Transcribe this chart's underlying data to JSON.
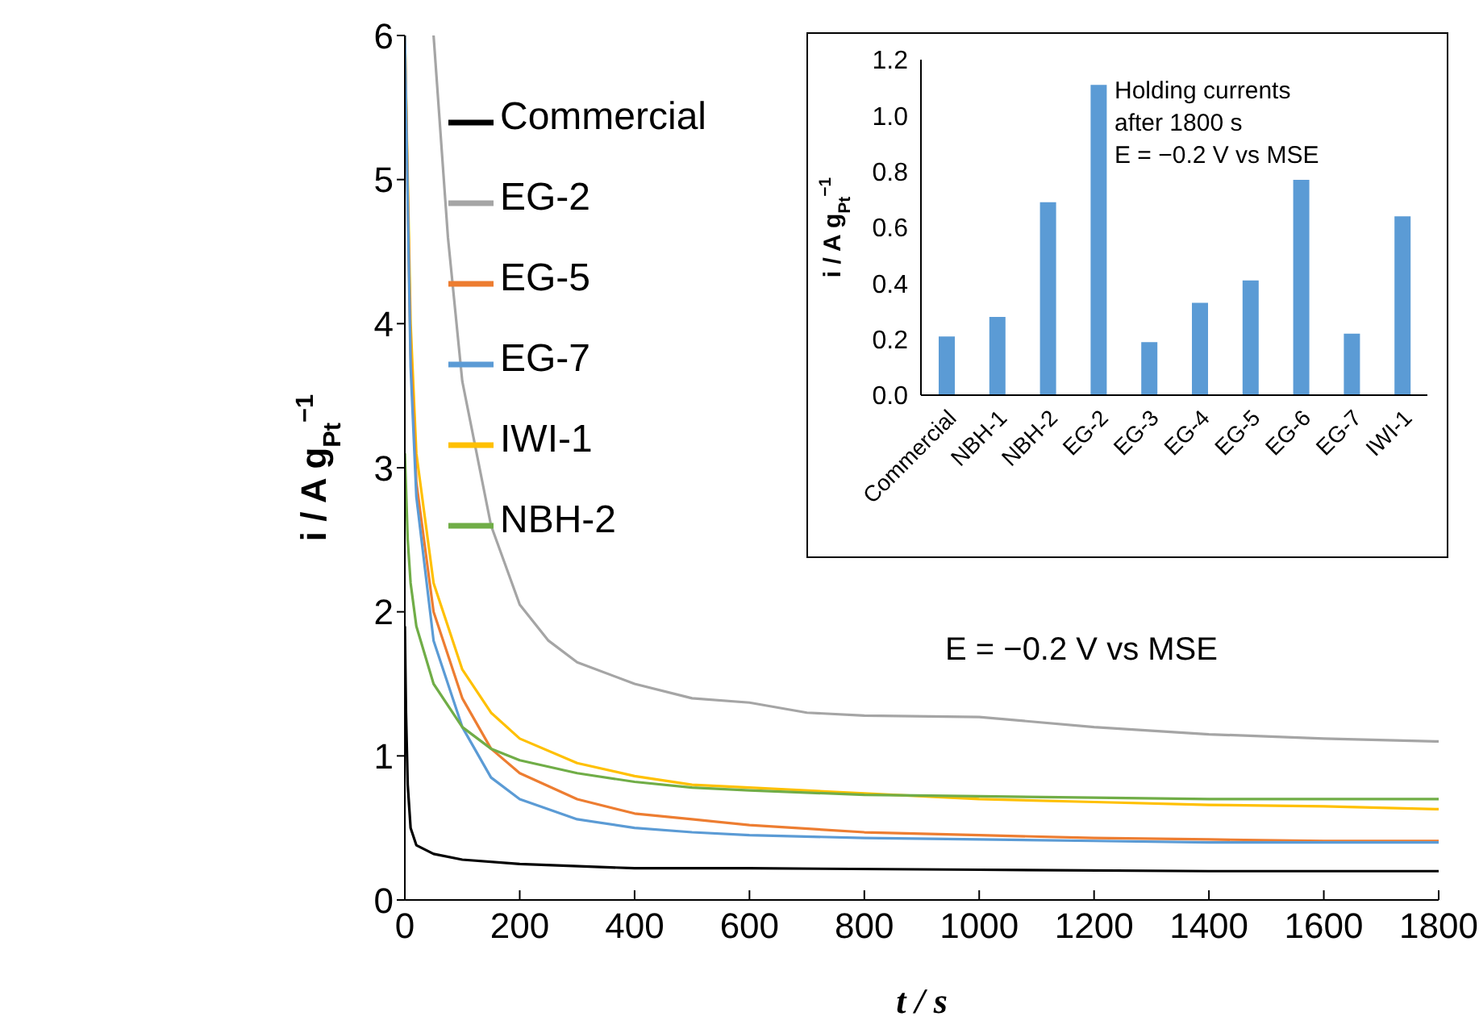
{
  "chart_data": [
    {
      "type": "line",
      "xlabel": "t / s",
      "ylabel": "i / A g$_{Pt}$$^{−1}$",
      "xlim": [
        0,
        1800
      ],
      "xticks": [
        0,
        200,
        400,
        600,
        800,
        1000,
        1200,
        1400,
        1600,
        1800
      ],
      "ylim": [
        0,
        6
      ],
      "yticks": [
        0,
        1,
        2,
        3,
        4,
        5,
        6
      ],
      "legend": "top left",
      "grid": false,
      "marker": "none",
      "line_style": "solid",
      "annotations": [
        "E = −0.2 V vs MSE"
      ],
      "series": [
        {
          "name": "EG-2",
          "color": "#a5a5a5",
          "x": [
            50,
            75,
            100,
            150,
            200,
            250,
            300,
            400,
            500,
            600,
            700,
            800,
            1000,
            1200,
            1400,
            1600,
            1800
          ],
          "values": [
            6.0,
            4.6,
            3.6,
            2.6,
            2.05,
            1.8,
            1.65,
            1.5,
            1.4,
            1.37,
            1.3,
            1.28,
            1.27,
            1.2,
            1.15,
            1.12,
            1.1
          ]
        },
        {
          "name": "IWI-1",
          "color": "#ffc000",
          "x": [
            0,
            10,
            20,
            50,
            100,
            150,
            200,
            300,
            400,
            500,
            600,
            800,
            1000,
            1200,
            1400,
            1600,
            1800
          ],
          "values": [
            6.0,
            4.0,
            3.1,
            2.2,
            1.6,
            1.3,
            1.12,
            0.95,
            0.86,
            0.8,
            0.78,
            0.74,
            0.7,
            0.68,
            0.66,
            0.65,
            0.63
          ]
        },
        {
          "name": "EG-5",
          "color": "#ed7d31",
          "x": [
            0,
            10,
            20,
            50,
            100,
            150,
            200,
            300,
            400,
            500,
            600,
            800,
            1000,
            1200,
            1400,
            1600,
            1800
          ],
          "values": [
            6.0,
            3.8,
            2.9,
            2.0,
            1.4,
            1.05,
            0.88,
            0.7,
            0.6,
            0.56,
            0.52,
            0.47,
            0.45,
            0.43,
            0.42,
            0.41,
            0.41
          ]
        },
        {
          "name": "EG-7",
          "color": "#5b9bd5",
          "x": [
            0,
            10,
            20,
            50,
            100,
            150,
            200,
            300,
            400,
            500,
            600,
            800,
            1000,
            1200,
            1400,
            1600,
            1800
          ],
          "values": [
            6.0,
            3.7,
            2.8,
            1.8,
            1.2,
            0.85,
            0.7,
            0.56,
            0.5,
            0.47,
            0.45,
            0.43,
            0.42,
            0.41,
            0.4,
            0.4,
            0.4
          ]
        },
        {
          "name": "NBH-2",
          "color": "#70ad47",
          "x": [
            0,
            5,
            10,
            20,
            50,
            100,
            150,
            200,
            300,
            400,
            500,
            600,
            800,
            1000,
            1200,
            1400,
            1600,
            1800
          ],
          "values": [
            3.1,
            2.5,
            2.2,
            1.9,
            1.5,
            1.2,
            1.05,
            0.97,
            0.88,
            0.82,
            0.78,
            0.76,
            0.73,
            0.72,
            0.71,
            0.7,
            0.7,
            0.7
          ]
        },
        {
          "name": "Commercial",
          "color": "#000000",
          "x": [
            0,
            2,
            5,
            10,
            20,
            50,
            100,
            200,
            400,
            600,
            1000,
            1400,
            1800
          ],
          "values": [
            1.9,
            1.3,
            0.8,
            0.5,
            0.38,
            0.32,
            0.28,
            0.25,
            0.22,
            0.22,
            0.21,
            0.2,
            0.2
          ]
        }
      ]
    },
    {
      "type": "bar",
      "ylabel": "i / A g$_{Pt}$$^{−1}$",
      "categories": [
        "Commercial",
        "NBH-1",
        "NBH-2",
        "EG-2",
        "EG-3",
        "EG-4",
        "EG-5",
        "EG-6",
        "EG-7",
        "IWI-1"
      ],
      "values": [
        0.21,
        0.28,
        0.69,
        1.11,
        0.19,
        0.33,
        0.41,
        0.77,
        0.22,
        0.64
      ],
      "color": "#5b9bd5",
      "ylim": [
        0,
        1.2
      ],
      "yticks": [
        {
          "value": 0,
          "label": "0.0"
        },
        {
          "value": 0.2,
          "label": "0.2"
        },
        {
          "value": 0.4,
          "label": "0.4"
        },
        {
          "value": 0.6,
          "label": "0.6"
        },
        {
          "value": 0.8,
          "label": "0.8"
        },
        {
          "value": 1,
          "label": "1.0"
        },
        {
          "value": 1.2,
          "label": "1.2"
        }
      ],
      "grid": false,
      "legend": false,
      "annotations": [
        "Holding currents",
        "after 1800 s",
        "E = −0.2 V vs MSE"
      ]
    }
  ]
}
